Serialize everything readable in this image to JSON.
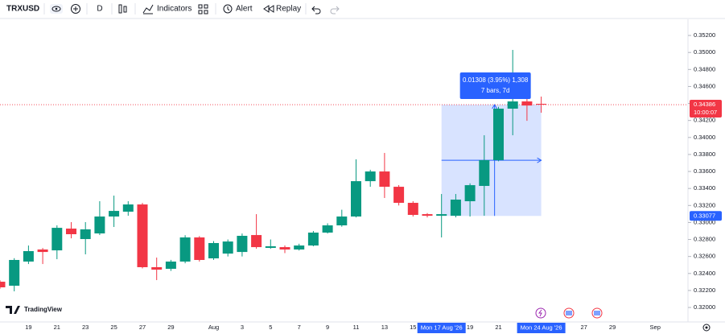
{
  "toolbar": {
    "symbol": "TRXUSD",
    "interval": "D",
    "indicators": "Indicators",
    "alert": "Alert",
    "replay": "Replay"
  },
  "brand": "TradingView",
  "chart_data": {
    "type": "candlestick",
    "categories": [
      null,
      null,
      "19",
      null,
      "21",
      null,
      "23",
      null,
      "25",
      null,
      "27",
      null,
      "29",
      null,
      null,
      "Aug",
      null,
      "3",
      null,
      "5",
      null,
      "7",
      null,
      "9",
      null,
      "11",
      null,
      "13",
      null,
      "15",
      null,
      null,
      null,
      "19",
      null,
      "21",
      null,
      null,
      null,
      null,
      null,
      "27",
      null,
      "29",
      null,
      null,
      "Sep"
    ],
    "open": [
      0.32303,
      0.32256,
      0.3254,
      0.32682,
      0.32672,
      0.32928,
      0.32805,
      0.32871,
      0.3307,
      0.33127,
      0.33212,
      0.32474,
      0.32455,
      0.3254,
      0.32824,
      0.32578,
      0.32634,
      0.32653,
      0.32852,
      0.32701,
      0.3271,
      0.32682,
      0.32729,
      0.32881,
      0.32966,
      0.3307,
      0.33486,
      0.336,
      0.3342,
      0.33231,
      0.33098,
      0.33079,
      0.33079,
      0.3325,
      0.3343,
      0.33733,
      0.34339,
      0.34424,
      0.34396,
      null,
      null,
      null,
      null,
      null,
      null,
      null,
      null
    ],
    "high": [
      0.3232,
      0.3258,
      0.32729,
      0.327,
      0.32966,
      0.33004,
      0.33004,
      0.3325,
      0.33316,
      0.3325,
      0.3323,
      0.32587,
      0.3256,
      0.3285,
      0.3284,
      0.3278,
      0.328,
      0.3287,
      0.33098,
      0.328,
      0.3273,
      0.3275,
      0.329,
      0.3299,
      0.3315,
      0.33742,
      0.3362,
      0.33818,
      0.3344,
      0.3325,
      0.3311,
      0.33335,
      0.33335,
      0.3346,
      0.34026,
      0.3436,
      0.3503,
      0.34499,
      0.34481,
      null,
      null,
      null,
      null,
      null,
      null,
      null,
      null
    ],
    "low": [
      0.3222,
      0.3219,
      0.32511,
      0.32511,
      0.32568,
      0.32814,
      0.32625,
      0.32852,
      0.32947,
      0.33079,
      0.3246,
      0.32322,
      0.3243,
      0.3252,
      0.3254,
      0.3256,
      0.326,
      0.326,
      0.32691,
      0.3269,
      0.3264,
      0.3267,
      0.3272,
      0.3287,
      0.3295,
      0.3306,
      0.3342,
      0.33288,
      0.332,
      0.3307,
      0.3306,
      0.32824,
      0.3306,
      0.3307,
      0.33079,
      0.3372,
      0.34026,
      0.34196,
      0.34291,
      null,
      null,
      null,
      null,
      null,
      null,
      null,
      null
    ],
    "close": [
      0.32237,
      0.32559,
      0.32663,
      0.32653,
      0.32937,
      0.32862,
      0.32919,
      0.3307,
      0.33136,
      0.33212,
      0.32474,
      0.32445,
      0.3254,
      0.32824,
      0.32559,
      0.32758,
      0.32776,
      0.32843,
      0.3271,
      0.3272,
      0.32682,
      0.32729,
      0.32881,
      0.32966,
      0.3307,
      0.33486,
      0.336,
      0.3342,
      0.33231,
      0.33089,
      0.33079,
      0.33098,
      0.33269,
      0.33439,
      0.33733,
      0.34339,
      0.34424,
      0.34376,
      0.34386,
      null,
      null,
      null,
      null,
      null,
      null,
      null,
      null
    ],
    "up_color": "#089981",
    "down_color": "#f23645",
    "ylim": [
      0.3183,
      0.3539
    ],
    "yticks": [
      {
        "value": 0.32,
        "label": "0.32000"
      },
      {
        "value": 0.322,
        "label": "0.32200"
      },
      {
        "value": 0.324,
        "label": "0.32400"
      },
      {
        "value": 0.326,
        "label": "0.32600"
      },
      {
        "value": 0.328,
        "label": "0.32800"
      },
      {
        "value": 0.33,
        "label": "0.33000"
      },
      {
        "value": 0.332,
        "label": "0.33200"
      },
      {
        "value": 0.334,
        "label": "0.33400"
      },
      {
        "value": 0.336,
        "label": "0.33600"
      },
      {
        "value": 0.338,
        "label": "0.33800"
      },
      {
        "value": 0.34,
        "label": "0.34000"
      },
      {
        "value": 0.342,
        "label": "0.34200"
      },
      {
        "value": 0.344,
        "label": "0.34400"
      },
      {
        "value": 0.346,
        "label": "0.34600"
      },
      {
        "value": 0.348,
        "label": "0.34800"
      },
      {
        "value": 0.35,
        "label": "0.35000"
      },
      {
        "value": 0.352,
        "label": "0.35200"
      }
    ],
    "grid": false,
    "current_price": 0.34386,
    "countdown": "10:00:07",
    "measure_start_price": 0.33077,
    "measure_label": "0.01308 (3.95%) 1,308",
    "measure_sublabel": "7 bars, 7d",
    "crosshair_dates": [
      "Mon 17 Aug '26",
      "Mon 24 Aug '26"
    ]
  }
}
